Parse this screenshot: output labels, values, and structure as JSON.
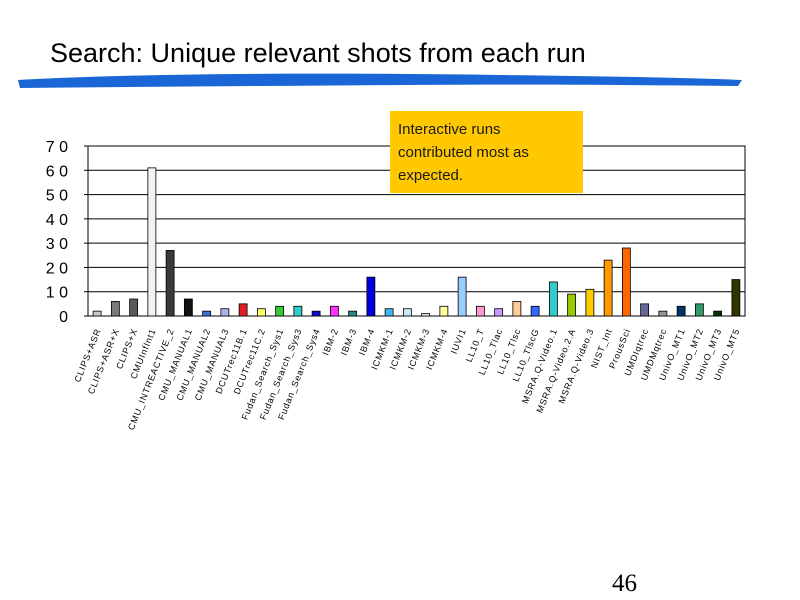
{
  "slide": {
    "title": "Search: Unique relevant shots from each run",
    "page_number": "46",
    "callout": "Interactive runs contributed most as expected."
  },
  "colors": {
    "brush": "#1a66d6",
    "callout_bg": "#ffc800"
  },
  "chart_data": {
    "type": "bar",
    "ylim": [
      0,
      70
    ],
    "yticks": [
      "0",
      "1 0",
      "2 0",
      "3 0",
      "4 0",
      "5 0",
      "6 0",
      "7 0"
    ],
    "grid": true,
    "legend": "none",
    "categories": [
      "CLIPS+ASR",
      "CLIPS+ASR+X",
      "CLIPS+X",
      "CMUInfInt1",
      "CMU_INTREACTIVE_2",
      "CMU_MANUAL1",
      "CMU_MANUAL2",
      "CMU_MANUAL3",
      "DCUTrec11B.1",
      "DCUTrec11C.2",
      "Fudan_Search_Sys1",
      "Fudan_Search_Sys3",
      "Fudan_Search_Sys4",
      "IBM-2",
      "IBM-3",
      "IBM-4",
      "ICMKM-1",
      "ICMKM-2",
      "ICMKM-3",
      "ICMKM-4",
      "IUVI1",
      "LL10_T",
      "LL10_Tlac",
      "LL10_Tlsc",
      "LL10_TlscG",
      "MSRA.Q-Video.1",
      "MSRA.Q-Video.2.A",
      "MSRA.Q-Video.3",
      "NIST_Int",
      "ProusSci",
      "UMDIqtrec",
      "UMDMqtrec",
      "UnivO_MT1",
      "UnivO_MT2",
      "UnivO_MT3",
      "UnivO_MT5"
    ],
    "values": [
      2,
      6,
      7,
      61,
      27,
      7,
      2,
      3,
      5,
      3,
      4,
      4,
      2,
      4,
      2,
      16,
      3,
      3,
      1,
      4,
      16,
      4,
      3,
      6,
      4,
      14,
      9,
      11,
      23,
      28,
      5,
      2,
      4,
      5,
      2,
      15
    ],
    "bar_colors": [
      "#c8c8c8",
      "#7a7a7a",
      "#5a5a5a",
      "#f2f2f2",
      "#3a3a3a",
      "#111111",
      "#3a6fd8",
      "#a9b6ec",
      "#e02020",
      "#ffff66",
      "#33cc33",
      "#33cccc",
      "#1010cc",
      "#ff33ff",
      "#2a8a80",
      "#0000dd",
      "#3fb6ee",
      "#c8ecf4",
      "#ddf0dd",
      "#ffff99",
      "#99ccff",
      "#ff99cc",
      "#cc99ff",
      "#ffcc99",
      "#3366ff",
      "#33cccc",
      "#99cc00",
      "#ffcc00",
      "#ff9900",
      "#ff6600",
      "#666699",
      "#969696",
      "#003366",
      "#339966",
      "#003300",
      "#333300"
    ]
  }
}
